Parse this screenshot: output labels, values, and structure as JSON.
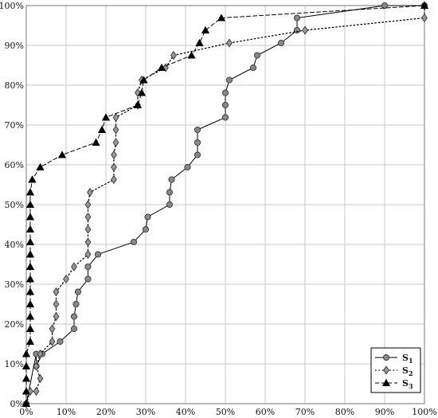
{
  "chart_data": {
    "type": "line",
    "xlim": [
      0,
      100
    ],
    "ylim": [
      0,
      100
    ],
    "x_ticks": [
      "0%",
      "10%",
      "20%",
      "30%",
      "40%",
      "50%",
      "60%",
      "70%",
      "80%",
      "90%",
      "100%"
    ],
    "y_ticks": [
      "0%",
      "10%",
      "20%",
      "30%",
      "40%",
      "50%",
      "60%",
      "70%",
      "80%",
      "90%",
      "100%"
    ],
    "grid": true,
    "legend_position": "bottom-right",
    "series": [
      {
        "name": "S",
        "name_sub": "1",
        "line_style": "solid",
        "marker": "circle",
        "color": "#888888",
        "points": [
          [
            0,
            0
          ],
          [
            2.5,
            12.5
          ],
          [
            2.5,
            9.4
          ],
          [
            4,
            12.5
          ],
          [
            8.5,
            15.6
          ],
          [
            12,
            18.8
          ],
          [
            12,
            21.9
          ],
          [
            12.5,
            25
          ],
          [
            13,
            28.1
          ],
          [
            15.5,
            31.3
          ],
          [
            15.5,
            34.4
          ],
          [
            18,
            37.5
          ],
          [
            27,
            40.6
          ],
          [
            30,
            43.8
          ],
          [
            30.5,
            46.9
          ],
          [
            36,
            50
          ],
          [
            36,
            53.1
          ],
          [
            36.5,
            56.3
          ],
          [
            40.5,
            59.4
          ],
          [
            43,
            62.5
          ],
          [
            43,
            65.6
          ],
          [
            43,
            68.8
          ],
          [
            50,
            71.9
          ],
          [
            50,
            75
          ],
          [
            50,
            78.1
          ],
          [
            51,
            81.3
          ],
          [
            57,
            84.4
          ],
          [
            58,
            87.5
          ],
          [
            64,
            90.6
          ],
          [
            68,
            93.8
          ],
          [
            68,
            96.9
          ],
          [
            90,
            100
          ],
          [
            100,
            100
          ]
        ]
      },
      {
        "name": "S",
        "name_sub": "2",
        "line_style": "dotted",
        "marker": "diamond",
        "color": "#999999",
        "points": [
          [
            0,
            0
          ],
          [
            1,
            3.1
          ],
          [
            2.5,
            3.1
          ],
          [
            3.5,
            6.3
          ],
          [
            2.5,
            9.4
          ],
          [
            3.5,
            12.5
          ],
          [
            6.5,
            15.6
          ],
          [
            6.5,
            18.8
          ],
          [
            7.5,
            21.9
          ],
          [
            7.5,
            25
          ],
          [
            7.5,
            28.1
          ],
          [
            10,
            31.3
          ],
          [
            12,
            34.4
          ],
          [
            15.5,
            37.5
          ],
          [
            15.5,
            40.6
          ],
          [
            15.5,
            43.8
          ],
          [
            15.5,
            46.9
          ],
          [
            15.5,
            50
          ],
          [
            16,
            53.1
          ],
          [
            22,
            56.3
          ],
          [
            22,
            59.4
          ],
          [
            22,
            62.5
          ],
          [
            22.5,
            65.6
          ],
          [
            22.5,
            68.8
          ],
          [
            22.5,
            71.9
          ],
          [
            28,
            75
          ],
          [
            28,
            78.1
          ],
          [
            29,
            81.3
          ],
          [
            35,
            84.4
          ],
          [
            37,
            87.5
          ],
          [
            51,
            90.6
          ],
          [
            70,
            93.8
          ],
          [
            100,
            96.9
          ],
          [
            100,
            100
          ]
        ]
      },
      {
        "name": "S",
        "name_sub": "3",
        "line_style": "dashed",
        "marker": "triangle",
        "color": "#000000",
        "points": [
          [
            0,
            0
          ],
          [
            0,
            3.1
          ],
          [
            0,
            6.3
          ],
          [
            0,
            9.4
          ],
          [
            0,
            12.5
          ],
          [
            1,
            15.6
          ],
          [
            1,
            18.8
          ],
          [
            1,
            21.9
          ],
          [
            1,
            25
          ],
          [
            1,
            28.1
          ],
          [
            1,
            31.3
          ],
          [
            1,
            34.4
          ],
          [
            1,
            37.5
          ],
          [
            1,
            40.6
          ],
          [
            1,
            43.8
          ],
          [
            1,
            46.9
          ],
          [
            1,
            50
          ],
          [
            1,
            53.1
          ],
          [
            1.5,
            56.3
          ],
          [
            3.5,
            59.4
          ],
          [
            9,
            62.5
          ],
          [
            17.5,
            65.6
          ],
          [
            19,
            68.8
          ],
          [
            20,
            71.9
          ],
          [
            28,
            75
          ],
          [
            29,
            78.1
          ],
          [
            29.5,
            81.3
          ],
          [
            34,
            84.4
          ],
          [
            41.5,
            87.5
          ],
          [
            43.5,
            90.6
          ],
          [
            45,
            93.8
          ],
          [
            49,
            96.9
          ],
          [
            100,
            100
          ]
        ]
      }
    ]
  }
}
